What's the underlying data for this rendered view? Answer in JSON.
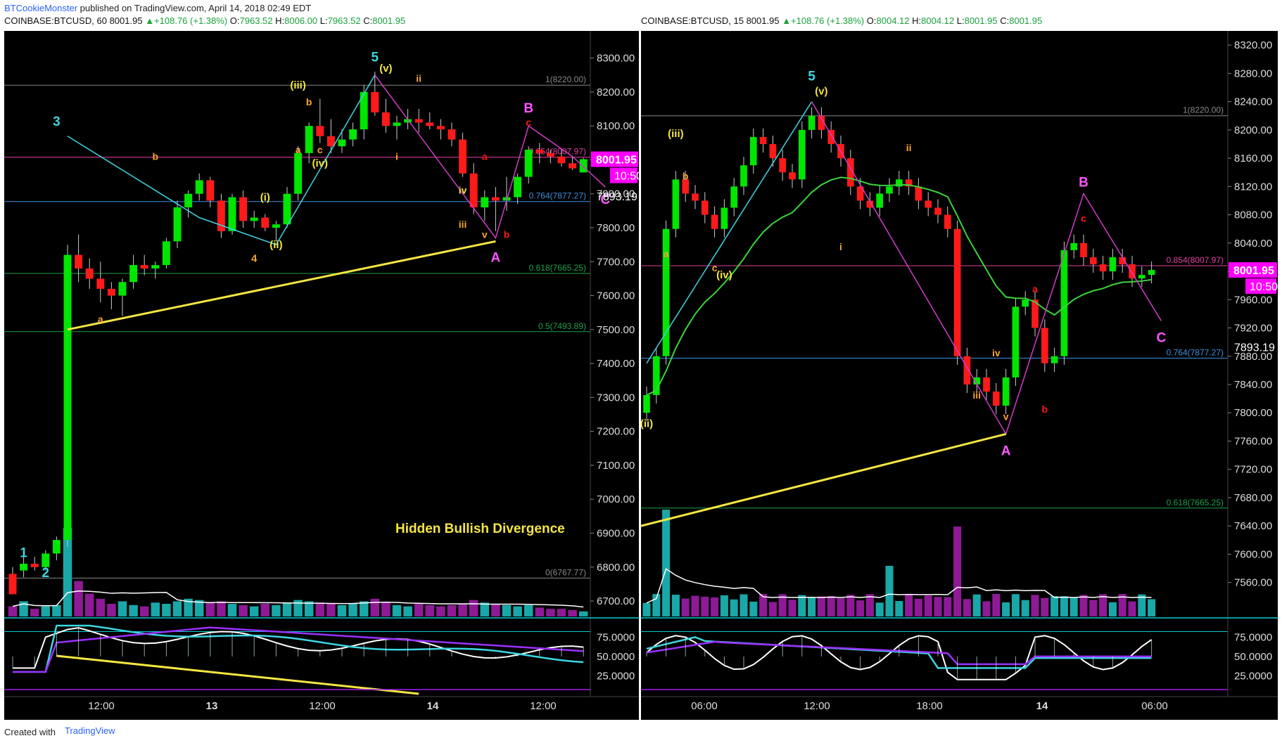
{
  "header": {
    "author": "BTCookieMonster",
    "published_text": "published on TradingView.com, April 14, 2018 02:49 EDT"
  },
  "footer": {
    "created_with": "Created with",
    "brand": "TradingView"
  },
  "colors": {
    "bull": "#00e600",
    "bear": "#ff1a1a",
    "cyan": "#3dd6e0",
    "magenta": "#d03cc8",
    "orange": "#f7a531",
    "yellow": "#f5e642",
    "fib_pink": "#e040a0",
    "fib_blue": "#3d8fe0",
    "fib_green": "#1fa24a"
  },
  "chart_data": [
    {
      "type": "candlestick",
      "symbol_line": {
        "symbol": "COINBASE:BTCUSD, 60",
        "last": "8001.95",
        "change": "▲+108.76 (+1.38%)",
        "o_label": "O:",
        "o": "7963.52",
        "h_label": "H:",
        "h": "8006.00",
        "l_label": "L:",
        "l": "7963.52",
        "c_label": "C:",
        "c": "8001.95"
      },
      "ylim": [
        6640,
        8380
      ],
      "y_ticks": [
        "8300.00",
        "8200.00",
        "8100.00",
        "8000.00",
        "7900.00",
        "7800.00",
        "7700.00",
        "7600.00",
        "7500.00",
        "7400.00",
        "7300.00",
        "7200.00",
        "7100.00",
        "7000.00",
        "6900.00",
        "6800.00",
        "6700.00"
      ],
      "y_tick_values": [
        8300,
        8200,
        8100,
        8000,
        7900,
        7800,
        7700,
        7600,
        7500,
        7400,
        7300,
        7200,
        7100,
        7000,
        6900,
        6800,
        6700
      ],
      "x_ticks": [
        "12:00",
        "13",
        "12:00",
        "14",
        "12:00"
      ],
      "price_tag": "8001.95",
      "price_tag_value": 8001.95,
      "time_tag": "10:50",
      "cursor_tag": "7893.19",
      "cursor_tag_value": 7893.19,
      "fib_levels": [
        {
          "label": "1(8220.00)",
          "value": 8220,
          "color": "#888888"
        },
        {
          "label": "0.854(8007.97)",
          "value": 8007.97,
          "color": "#e040a0"
        },
        {
          "label": "0.764(7877.27)",
          "value": 7877.27,
          "color": "#3d8fe0"
        },
        {
          "label": "0.618(7665.25)",
          "value": 7665.25,
          "color": "#1fa24a"
        },
        {
          "label": "0.5(7493.89)",
          "value": 7493.89,
          "color": "#1fa24a"
        },
        {
          "label": "0(6767.77)",
          "value": 6767.77,
          "color": "#888888"
        }
      ],
      "annotation": "Hidden Bullish Divergence",
      "wave_labels": [
        "1",
        "2",
        "3",
        "4",
        "5",
        "(i)",
        "(ii)",
        "(iii)",
        "(iv)",
        "(v)",
        "a",
        "b",
        "c",
        "i",
        "ii",
        "iii",
        "iv",
        "v",
        "A",
        "B",
        "C"
      ],
      "indicator_ticks": [
        "75.0000",
        "50.0000",
        "25.0000"
      ],
      "indicator_tick_values": [
        75,
        50,
        25
      ]
    },
    {
      "type": "candlestick",
      "symbol_line": {
        "symbol": "COINBASE:BTCUSD, 15",
        "last": "8001.95",
        "change": "▲+108.76 (+1.38%)",
        "o_label": "O:",
        "o": "8004.12",
        "h_label": "H:",
        "h": "8004.12",
        "l_label": "L:",
        "l": "8001.95",
        "c_label": "C:",
        "c": "8001.95"
      },
      "ylim": [
        7505,
        8340
      ],
      "y_ticks": [
        "8320.00",
        "8280.00",
        "8240.00",
        "8200.00",
        "8160.00",
        "8120.00",
        "8080.00",
        "8040.00",
        "8000.00",
        "7960.00",
        "7920.00",
        "7880.00",
        "7840.00",
        "7800.00",
        "7760.00",
        "7720.00",
        "7680.00",
        "7640.00",
        "7600.00",
        "7560.00"
      ],
      "y_tick_values": [
        8320,
        8280,
        8240,
        8200,
        8160,
        8120,
        8080,
        8040,
        8000,
        7960,
        7920,
        7880,
        7840,
        7800,
        7760,
        7720,
        7680,
        7640,
        7600,
        7560
      ],
      "x_ticks": [
        "06:00",
        "12:00",
        "18:00",
        "14",
        "06:00"
      ],
      "price_tag": "8001.95",
      "price_tag_value": 8001.95,
      "time_tag": "10:50",
      "cursor_tag": "7893.19",
      "cursor_tag_value": 7893.19,
      "fib_levels": [
        {
          "label": "1(8220.00)",
          "value": 8220,
          "color": "#888888"
        },
        {
          "label": "0.854(8007.97)",
          "value": 8007.97,
          "color": "#e040a0"
        },
        {
          "label": "0.764(7877.27)",
          "value": 7877.27,
          "color": "#3d8fe0"
        },
        {
          "label": "0.618(7665.25)",
          "value": 7665.25,
          "color": "#1fa24a"
        }
      ],
      "wave_labels": [
        "5",
        "(v)",
        "(iii)",
        "(iv)",
        "(ii)",
        "a",
        "b",
        "c",
        "i",
        "ii",
        "iii",
        "iv",
        "v",
        "A",
        "B",
        "C"
      ],
      "indicator_ticks": [
        "75.0000",
        "50.0000",
        "25.0000"
      ],
      "indicator_tick_values": [
        75,
        50,
        25
      ]
    }
  ]
}
